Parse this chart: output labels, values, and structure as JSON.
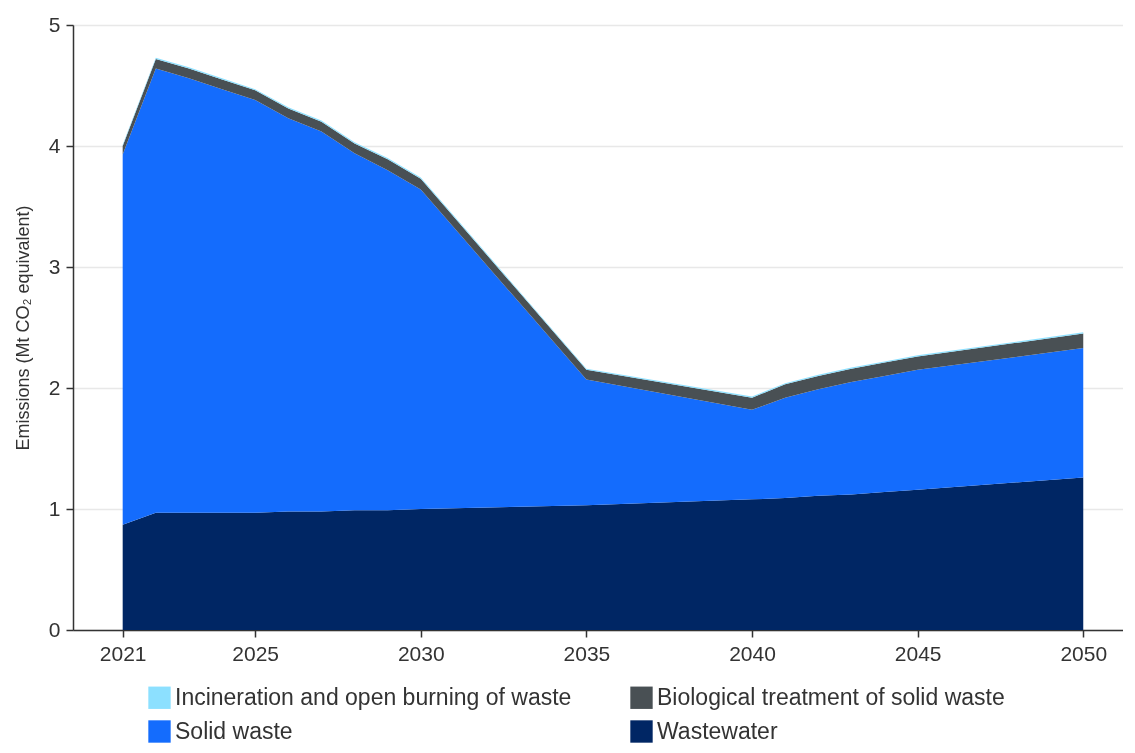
{
  "chart_data": {
    "type": "area",
    "stacked": true,
    "ylabel": "Emissions (Mt CO₂ equivalent)",
    "x": [
      2021,
      2022,
      2023,
      2024,
      2025,
      2026,
      2027,
      2028,
      2029,
      2030,
      2035,
      2040,
      2041,
      2042,
      2043,
      2044,
      2045,
      2050
    ],
    "series": [
      {
        "name": "Wastewater",
        "color": "#002664",
        "values": [
          0.87,
          0.97,
          0.97,
          0.97,
          0.97,
          0.98,
          0.98,
          0.99,
          0.99,
          1.0,
          1.03,
          1.08,
          1.09,
          1.11,
          1.12,
          1.14,
          1.16,
          1.26
        ]
      },
      {
        "name": "Solid waste",
        "color": "#146cfd",
        "values": [
          3.06,
          3.67,
          3.59,
          3.5,
          3.41,
          3.25,
          3.14,
          2.95,
          2.81,
          2.64,
          1.04,
          0.74,
          0.83,
          0.88,
          0.93,
          0.96,
          0.99,
          1.07
        ]
      },
      {
        "name": "Biological treatment of solid waste",
        "color": "#495054",
        "values": [
          0.07,
          0.08,
          0.08,
          0.08,
          0.08,
          0.08,
          0.08,
          0.08,
          0.09,
          0.09,
          0.08,
          0.1,
          0.11,
          0.11,
          0.11,
          0.11,
          0.11,
          0.12
        ]
      },
      {
        "name": "Incineration and open burning of waste",
        "color": "#8ce0ff",
        "values": [
          0.01,
          0.01,
          0.01,
          0.01,
          0.01,
          0.01,
          0.01,
          0.01,
          0.01,
          0.01,
          0.01,
          0.01,
          0.01,
          0.01,
          0.01,
          0.01,
          0.01,
          0.01
        ]
      }
    ],
    "xlim": [
      2019.5,
      2051.2
    ],
    "xticks": [
      2021,
      2025,
      2030,
      2035,
      2040,
      2045,
      2050
    ],
    "ylim": [
      0,
      5
    ],
    "yticks": [
      0,
      1,
      2,
      3,
      4,
      5
    ],
    "grid": "y",
    "legend": "bottom"
  }
}
